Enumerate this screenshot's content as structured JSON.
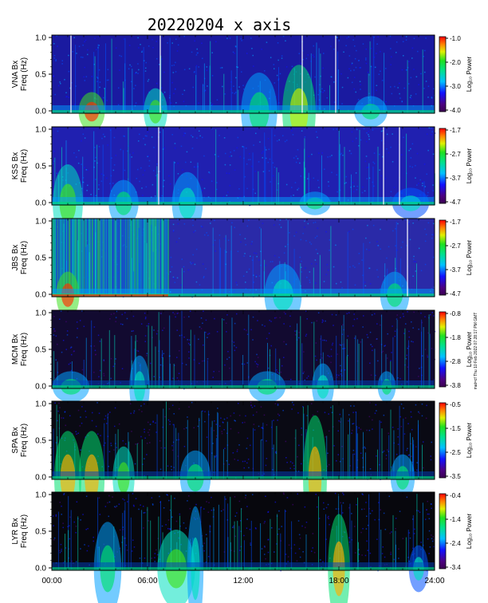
{
  "chart_data": {
    "type": "heatmap",
    "title": "20220204  x axis",
    "xlabel": "",
    "x_ticks": [
      "00:00",
      "06:00",
      "12:00",
      "18:00",
      "24:00"
    ],
    "x_range_hours": [
      0,
      24
    ],
    "y_ticks": [
      "0.0",
      "0.5",
      "1.0"
    ],
    "y_range_hz": [
      0,
      1.0
    ],
    "colorbar_label": "Log₁₀ Power",
    "panels": [
      {
        "station": "VNA Bx",
        "ylabel_line1": "VNA Bx",
        "ylabel_line2": "Freq (Hz)",
        "cbar_ticks": [
          "-1.0",
          "-2.0",
          "-3.0",
          "-4.0"
        ],
        "cbar_range": [
          -4.0,
          -1.0
        ],
        "background": "#1a1aa0",
        "gaps_hours": [
          1.2,
          6.8,
          15.7,
          17.8
        ],
        "bursts": [
          {
            "t": 2.5,
            "level": 0.95,
            "height": 0.25
          },
          {
            "t": 6.5,
            "level": 0.6,
            "height": 0.3
          },
          {
            "t": 13.0,
            "level": 0.55,
            "height": 0.5
          },
          {
            "t": 15.5,
            "level": 0.75,
            "height": 0.6
          },
          {
            "t": 20.0,
            "level": 0.5,
            "height": 0.2
          }
        ]
      },
      {
        "station": "KSS Bx",
        "ylabel_line1": "KSS Bx",
        "ylabel_line2": "Freq (Hz)",
        "cbar_ticks": [
          "-1.7",
          "-2.7",
          "-3.7",
          "-4.7"
        ],
        "cbar_range": [
          -4.7,
          -1.7
        ],
        "background": "#2020b0",
        "gaps_hours": [
          6.7,
          20.8,
          21.8
        ],
        "bursts": [
          {
            "t": 1.0,
            "level": 0.6,
            "height": 0.5
          },
          {
            "t": 4.5,
            "level": 0.5,
            "height": 0.3
          },
          {
            "t": 8.5,
            "level": 0.45,
            "height": 0.4
          },
          {
            "t": 16.5,
            "level": 0.55,
            "height": 0.15
          },
          {
            "t": 22.5,
            "level": 0.4,
            "height": 0.2
          }
        ]
      },
      {
        "station": "JBS Bx",
        "ylabel_line1": "JBS Bx",
        "ylabel_line2": "Freq (Hz)",
        "cbar_ticks": [
          "-1.7",
          "-2.7",
          "-3.7",
          "-4.7"
        ],
        "cbar_range": [
          -4.7,
          -1.7
        ],
        "background": "#2a2aa8",
        "gaps_hours": [
          22.3
        ],
        "bright_region_hours": [
          0,
          7.3
        ],
        "bursts": [
          {
            "t": 1.0,
            "level": 0.95,
            "height": 0.3
          },
          {
            "t": 14.5,
            "level": 0.45,
            "height": 0.4
          },
          {
            "t": 21.5,
            "level": 0.55,
            "height": 0.3
          }
        ]
      },
      {
        "station": "MCM Bx",
        "ylabel_line1": "MCM Bx",
        "ylabel_line2": "Freq (Hz)",
        "cbar_ticks": [
          "-0.8",
          "-1.8",
          "-2.8",
          "-3.8"
        ],
        "cbar_range": [
          -3.8,
          -0.8
        ],
        "background": "#120a30",
        "gaps_hours": [],
        "bursts": [
          {
            "t": 1.2,
            "level": 0.5,
            "height": 0.2
          },
          {
            "t": 5.5,
            "level": 0.45,
            "height": 0.4
          },
          {
            "t": 13.5,
            "level": 0.5,
            "height": 0.2
          },
          {
            "t": 17.0,
            "level": 0.45,
            "height": 0.3
          },
          {
            "t": 21.0,
            "level": 0.5,
            "height": 0.2
          }
        ]
      },
      {
        "station": "SPA Bx",
        "ylabel_line1": "SPA Bx",
        "ylabel_line2": "Freq (Hz)",
        "cbar_ticks": [
          "-0.5",
          "-1.5",
          "-2.5",
          "-3.5"
        ],
        "cbar_range": [
          -3.5,
          -0.5
        ],
        "background": "#0a0a14",
        "gaps_hours": [],
        "bursts": [
          {
            "t": 1.0,
            "level": 0.85,
            "height": 0.6
          },
          {
            "t": 2.5,
            "level": 0.8,
            "height": 0.6
          },
          {
            "t": 4.5,
            "level": 0.6,
            "height": 0.4
          },
          {
            "t": 9.0,
            "level": 0.55,
            "height": 0.35
          },
          {
            "t": 16.5,
            "level": 0.8,
            "height": 0.8
          },
          {
            "t": 22.0,
            "level": 0.5,
            "height": 0.3
          }
        ]
      },
      {
        "station": "LYR Bx",
        "ylabel_line1": "LYR Bx",
        "ylabel_line2": "Freq (Hz)",
        "cbar_ticks": [
          "-0.4",
          "-1.4",
          "-2.4",
          "-3.4"
        ],
        "cbar_range": [
          -3.4,
          -0.4
        ],
        "background": "#07070d",
        "gaps_hours": [],
        "bursts": [
          {
            "t": 3.5,
            "level": 0.55,
            "height": 0.6
          },
          {
            "t": 7.8,
            "level": 0.6,
            "height": 0.5
          },
          {
            "t": 9.0,
            "level": 0.45,
            "height": 0.8
          },
          {
            "t": 18.0,
            "level": 0.8,
            "height": 0.7
          },
          {
            "t": 23.0,
            "level": 0.4,
            "height": 0.3
          }
        ]
      }
    ]
  },
  "side_note": "mat=cf Thu 10 Feb 2022 07:28:17 PM GMT"
}
